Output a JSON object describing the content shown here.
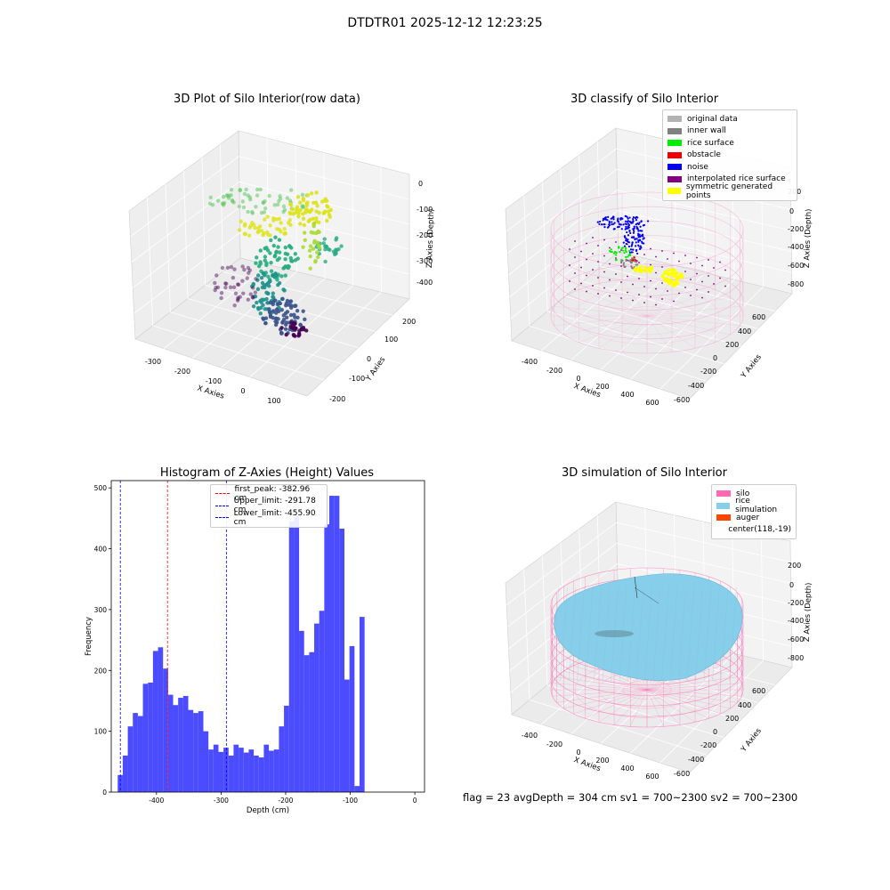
{
  "suptitle": "DTDTR01 2025-12-12 12:23:25",
  "panel1": {
    "title": "3D Plot of Silo Interior(row data)",
    "xlabel": "X Axies",
    "ylabel": "Y Axies",
    "zlabel": "Z Axies (Depth)",
    "xticks": [
      "-300",
      "-200",
      "-100",
      "0",
      "100"
    ],
    "yticks": [
      "200",
      "100",
      "0",
      "-100",
      "-200"
    ],
    "zticks": [
      "0",
      "-100",
      "-200",
      "-300",
      "-400"
    ]
  },
  "panel2": {
    "title": "3D classify of Silo Interior",
    "xlabel": "X Axies",
    "ylabel": "Y Axies",
    "zlabel": "Z Axies (Depth)",
    "xticks": [
      "-400",
      "-200",
      "0",
      "200",
      "400",
      "600"
    ],
    "yticks": [
      "600",
      "400",
      "200",
      "0",
      "-200",
      "-400",
      "-600"
    ],
    "zticks": [
      "200",
      "0",
      "-200",
      "-400",
      "-600",
      "-800"
    ],
    "legend": [
      {
        "label": "original data",
        "color": "#b3b3b3"
      },
      {
        "label": "inner wall",
        "color": "#808080"
      },
      {
        "label": "rice surface",
        "color": "#00ee00"
      },
      {
        "label": "obstacle",
        "color": "#ee0000"
      },
      {
        "label": "noise",
        "color": "#0000ee"
      },
      {
        "label": "interpolated rice surface",
        "color": "#800080"
      },
      {
        "label": "symmetric generated points",
        "color": "#ffff00"
      }
    ]
  },
  "panel3": {
    "title": "Histogram of Z-Axies (Height) Values",
    "xlabel": "Depth (cm)",
    "ylabel": "Frequency",
    "xticks": [
      "-400",
      "-300",
      "-200",
      "-100",
      "0"
    ],
    "yticks": [
      "0",
      "100",
      "200",
      "300",
      "400",
      "500"
    ],
    "legend": [
      {
        "label": "first_peak: -382.96 cm",
        "color": "#ff0000"
      },
      {
        "label": "Upper_limit: -291.78 cm",
        "color": "#0000ff"
      },
      {
        "label": "Lower_limit: -455.90 cm",
        "color": "#0000ff"
      }
    ]
  },
  "panel4": {
    "title": "3D simulation of Silo Interior",
    "xlabel": "X Axies",
    "ylabel": "Y Axies",
    "zlabel": "Z Axies (Depth)",
    "xticks": [
      "-400",
      "-200",
      "0",
      "200",
      "400",
      "600"
    ],
    "yticks": [
      "600",
      "400",
      "200",
      "0",
      "-200",
      "-400",
      "-600"
    ],
    "zticks": [
      "200",
      "0",
      "-200",
      "-400",
      "-600",
      "-800"
    ],
    "legend": [
      {
        "label": "silo",
        "color": "#ff69b4"
      },
      {
        "label": "rice simulation",
        "color": "#87ceeb"
      },
      {
        "label": "auger",
        "color": "#ff4500"
      },
      {
        "label": "center(118,-19)",
        "color": ""
      }
    ]
  },
  "footer": "flag = 23  avgDepth = 304 cm  sv1 = 700~2300  sv2 = 700~2300",
  "chart_data": [
    {
      "type": "scatter",
      "title": "3D Plot of Silo Interior(row data)",
      "xlabel": "X Axies",
      "ylabel": "Y Axies",
      "zlabel": "Z Axies (Depth)",
      "xlim": [
        -350,
        150
      ],
      "ylim": [
        -230,
        230
      ],
      "zlim": [
        -450,
        10
      ],
      "colormap": "viridis"
    },
    {
      "type": "scatter",
      "title": "3D classify of Silo Interior",
      "xlabel": "X Axies",
      "ylabel": "Y Axies",
      "zlabel": "Z Axies (Depth)",
      "xlim": [
        -500,
        700
      ],
      "ylim": [
        -700,
        700
      ],
      "zlim": [
        -950,
        250
      ]
    },
    {
      "type": "bar",
      "title": "Histogram of Z-Axies (Height) Values",
      "xlabel": "Depth (cm)",
      "ylabel": "Frequency",
      "xlim": [
        -470,
        15
      ],
      "ylim": [
        0,
        512
      ],
      "bin_start": -460,
      "bin_width": 7.8,
      "values": [
        28,
        60,
        108,
        130,
        125,
        178,
        180,
        232,
        238,
        203,
        160,
        143,
        155,
        158,
        135,
        130,
        133,
        100,
        70,
        78,
        66,
        73,
        60,
        78,
        73,
        65,
        70,
        60,
        57,
        78,
        68,
        70,
        108,
        142,
        445,
        453,
        265,
        225,
        230,
        277,
        298,
        440,
        487,
        487,
        433,
        185,
        240,
        10,
        288
      ],
      "vlines": [
        {
          "x": -382.96,
          "color": "#ff0000",
          "label": "first_peak: -382.96 cm"
        },
        {
          "x": -291.78,
          "color": "#0000ff",
          "label": "Upper_limit: -291.78 cm"
        },
        {
          "x": -455.9,
          "color": "#0000ff",
          "label": "Lower_limit: -455.90 cm"
        }
      ]
    },
    {
      "type": "area",
      "title": "3D simulation of Silo Interior",
      "xlabel": "X Axies",
      "ylabel": "Y Axies",
      "zlabel": "Z Axies (Depth)",
      "xlim": [
        -500,
        700
      ],
      "ylim": [
        -700,
        700
      ],
      "zlim": [
        -950,
        250
      ]
    }
  ]
}
